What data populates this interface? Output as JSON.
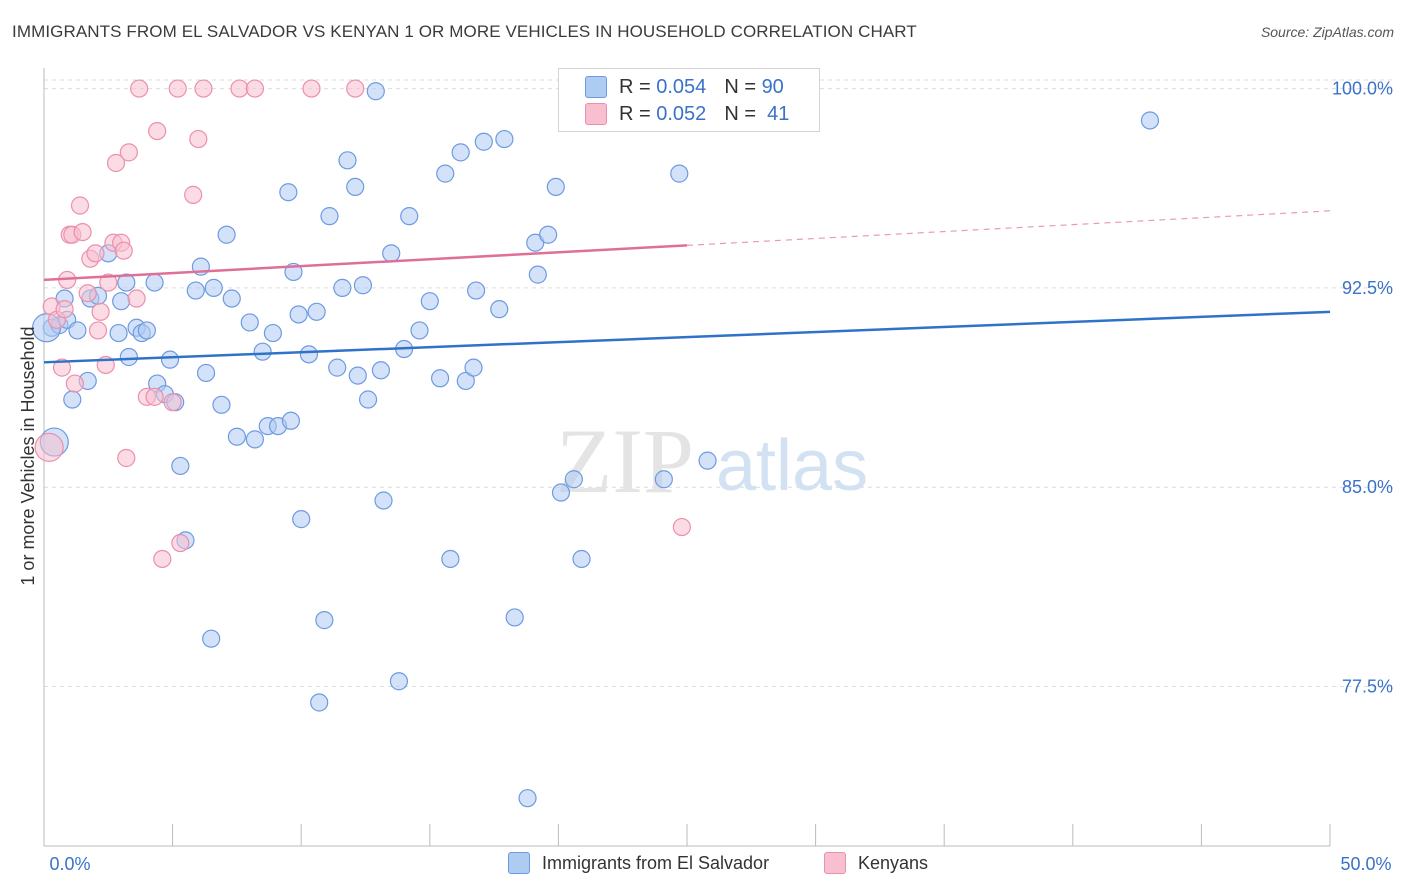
{
  "title": "IMMIGRANTS FROM EL SALVADOR VS KENYAN 1 OR MORE VEHICLES IN HOUSEHOLD CORRELATION CHART",
  "source": "Source: ZipAtlas.com",
  "watermark": {
    "zip": "ZIP",
    "atlas": "atlas"
  },
  "legend": {
    "rows": [
      {
        "r_label": "R =",
        "r_value": "0.054",
        "n_label": "N =",
        "n_value": "90",
        "color": "#aecbf2",
        "border": "#6d9be0"
      },
      {
        "r_label": "R =",
        "r_value": "0.052",
        "n_label": "N =",
        "n_value": "41",
        "color": "#f7bfd0",
        "border": "#ec8fac"
      }
    ]
  },
  "bottom_legend": {
    "items": [
      {
        "label": "Immigrants from El Salvador",
        "color": "#aecbf2",
        "border": "#6d9be0"
      },
      {
        "label": "Kenyans",
        "color": "#f7bfd0",
        "border": "#ec8fac"
      }
    ]
  },
  "chart_data": {
    "type": "scatter",
    "title": "IMMIGRANTS FROM EL SALVADOR VS KENYAN 1 OR MORE VEHICLES IN HOUSEHOLD CORRELATION CHART",
    "xlabel": "",
    "ylabel": "1 or more Vehicles in Household",
    "xlim": [
      0,
      50
    ],
    "ylim": [
      71.5,
      101
    ],
    "x_tick_labels": [
      {
        "value": 0,
        "label": "0.0%"
      },
      {
        "value": 50,
        "label": "50.0%"
      }
    ],
    "y_tick_labels": [
      {
        "value": 100,
        "label": "100.0%"
      },
      {
        "value": 92.5,
        "label": "92.5%"
      },
      {
        "value": 85,
        "label": "85.0%"
      },
      {
        "value": 77.5,
        "label": "77.5%"
      }
    ],
    "series": [
      {
        "name": "Immigrants from El Salvador",
        "color": "#aecbf2",
        "stroke": "#6d9be0",
        "line_color": "#2f72c9",
        "trend": {
          "x": [
            0,
            50
          ],
          "y": [
            89.7,
            91.6
          ],
          "dashed_from": null
        },
        "points": [
          [
            0.3,
            91.0
          ],
          [
            0.4,
            86.7
          ],
          [
            0.6,
            91.1
          ],
          [
            0.8,
            92.1
          ],
          [
            0.9,
            91.3
          ],
          [
            1.1,
            88.3
          ],
          [
            1.3,
            90.9
          ],
          [
            1.7,
            89.0
          ],
          [
            1.8,
            92.1
          ],
          [
            2.1,
            92.2
          ],
          [
            2.5,
            93.8
          ],
          [
            2.9,
            90.8
          ],
          [
            3.0,
            92.0
          ],
          [
            3.2,
            92.7
          ],
          [
            3.3,
            89.9
          ],
          [
            3.6,
            91.0
          ],
          [
            3.8,
            90.8
          ],
          [
            4.0,
            90.9
          ],
          [
            4.3,
            92.7
          ],
          [
            4.4,
            88.9
          ],
          [
            4.7,
            88.5
          ],
          [
            4.9,
            89.8
          ],
          [
            5.1,
            88.2
          ],
          [
            5.3,
            85.8
          ],
          [
            5.5,
            83.0
          ],
          [
            5.9,
            92.4
          ],
          [
            6.1,
            93.3
          ],
          [
            6.3,
            89.3
          ],
          [
            6.5,
            79.3
          ],
          [
            6.6,
            92.5
          ],
          [
            6.9,
            88.1
          ],
          [
            7.1,
            94.5
          ],
          [
            7.3,
            92.1
          ],
          [
            7.5,
            86.9
          ],
          [
            8.0,
            91.2
          ],
          [
            8.2,
            86.8
          ],
          [
            8.5,
            90.1
          ],
          [
            8.7,
            87.3
          ],
          [
            8.9,
            90.8
          ],
          [
            9.1,
            87.3
          ],
          [
            9.5,
            96.1
          ],
          [
            9.6,
            87.5
          ],
          [
            9.7,
            93.1
          ],
          [
            9.9,
            91.5
          ],
          [
            10.0,
            83.8
          ],
          [
            10.3,
            90.0
          ],
          [
            10.6,
            91.6
          ],
          [
            10.7,
            76.9
          ],
          [
            10.9,
            80.0
          ],
          [
            11.1,
            95.2
          ],
          [
            11.4,
            89.5
          ],
          [
            11.6,
            92.5
          ],
          [
            11.8,
            97.3
          ],
          [
            12.1,
            96.3
          ],
          [
            12.2,
            89.2
          ],
          [
            12.4,
            92.6
          ],
          [
            12.6,
            88.3
          ],
          [
            12.9,
            99.9
          ],
          [
            13.1,
            89.4
          ],
          [
            13.2,
            84.5
          ],
          [
            13.5,
            93.8
          ],
          [
            13.8,
            77.7
          ],
          [
            14.0,
            90.2
          ],
          [
            14.2,
            95.2
          ],
          [
            14.6,
            90.9
          ],
          [
            15.0,
            92.0
          ],
          [
            15.4,
            89.1
          ],
          [
            15.6,
            96.8
          ],
          [
            15.8,
            82.3
          ],
          [
            16.2,
            97.6
          ],
          [
            16.4,
            89.0
          ],
          [
            16.7,
            89.5
          ],
          [
            16.8,
            92.4
          ],
          [
            17.1,
            98.0
          ],
          [
            17.7,
            91.7
          ],
          [
            17.9,
            98.1
          ],
          [
            18.3,
            80.1
          ],
          [
            18.8,
            73.3
          ],
          [
            19.1,
            94.2
          ],
          [
            19.2,
            93.0
          ],
          [
            19.6,
            94.5
          ],
          [
            19.9,
            96.3
          ],
          [
            20.1,
            84.8
          ],
          [
            20.6,
            85.3
          ],
          [
            20.9,
            82.3
          ],
          [
            24.1,
            85.3
          ],
          [
            24.7,
            96.8
          ],
          [
            25.8,
            86.0
          ],
          [
            43.0,
            98.8
          ],
          [
            0.1,
            91.0
          ]
        ]
      },
      {
        "name": "Kenyans",
        "color": "#f7bfd0",
        "stroke": "#ec8fac",
        "line_color": "#e06f97",
        "trend": {
          "x": [
            0,
            50
          ],
          "y": [
            92.8,
            95.4
          ],
          "dashed_from": 25
        },
        "points": [
          [
            0.2,
            86.5
          ],
          [
            0.3,
            91.8
          ],
          [
            0.5,
            91.3
          ],
          [
            0.7,
            89.5
          ],
          [
            0.8,
            91.7
          ],
          [
            0.9,
            92.8
          ],
          [
            1.0,
            94.5
          ],
          [
            1.1,
            94.5
          ],
          [
            1.2,
            88.9
          ],
          [
            1.4,
            95.6
          ],
          [
            1.5,
            94.6
          ],
          [
            1.7,
            92.3
          ],
          [
            1.8,
            93.6
          ],
          [
            2.0,
            93.8
          ],
          [
            2.1,
            90.9
          ],
          [
            2.2,
            91.6
          ],
          [
            2.4,
            89.6
          ],
          [
            2.5,
            92.7
          ],
          [
            2.7,
            94.2
          ],
          [
            2.8,
            97.2
          ],
          [
            3.0,
            94.2
          ],
          [
            3.1,
            93.9
          ],
          [
            3.2,
            86.1
          ],
          [
            3.3,
            97.6
          ],
          [
            3.6,
            92.1
          ],
          [
            3.7,
            100.0
          ],
          [
            4.0,
            88.4
          ],
          [
            4.3,
            88.4
          ],
          [
            4.4,
            98.4
          ],
          [
            4.6,
            82.3
          ],
          [
            5.0,
            88.2
          ],
          [
            5.2,
            100.0
          ],
          [
            5.3,
            82.9
          ],
          [
            5.8,
            96.0
          ],
          [
            6.0,
            98.1
          ],
          [
            6.2,
            100.0
          ],
          [
            7.6,
            100.0
          ],
          [
            8.2,
            100.0
          ],
          [
            10.4,
            100.0
          ],
          [
            12.1,
            100.0
          ],
          [
            24.8,
            83.5
          ]
        ]
      }
    ]
  }
}
